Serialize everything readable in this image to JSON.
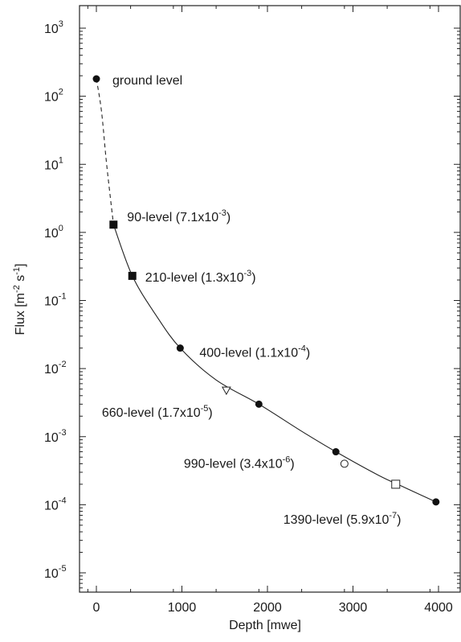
{
  "chart_data": {
    "type": "scatter",
    "xlabel": "Depth [mwe]",
    "ylabel_base": "Flux [m",
    "ylabel_exp1": "-2",
    "ylabel_mid": " s",
    "ylabel_exp2": "-1",
    "ylabel_end": "]",
    "xlim": [
      -200,
      4000
    ],
    "ylim_log10": [
      -5.3,
      3.3
    ],
    "y_scale": "log",
    "grid": false,
    "x_ticks": [
      {
        "value": 0,
        "label": "0"
      },
      {
        "value": 1000,
        "label": "1000"
      },
      {
        "value": 2000,
        "label": "2000"
      },
      {
        "value": 3000,
        "label": "3000"
      },
      {
        "value": 4000,
        "label": "4000"
      }
    ],
    "y_ticks": [
      {
        "exp": 3,
        "base": "10",
        "sup": "3"
      },
      {
        "exp": 2,
        "base": "10",
        "sup": "2"
      },
      {
        "exp": 1,
        "base": "10",
        "sup": "1"
      },
      {
        "exp": 0,
        "base": "10",
        "sup": "0"
      },
      {
        "exp": -1,
        "base": "10",
        "sup": "-1"
      },
      {
        "exp": -2,
        "base": "10",
        "sup": "-2"
      },
      {
        "exp": -3,
        "base": "10",
        "sup": "-3"
      },
      {
        "exp": -4,
        "base": "10",
        "sup": "-4"
      },
      {
        "exp": -5,
        "base": "10",
        "sup": "-5"
      }
    ],
    "points": [
      {
        "x": 0,
        "y": 180,
        "marker": "filled-circle",
        "label": "ground level"
      },
      {
        "x": 200,
        "y": 1.3,
        "marker": "filled-square",
        "label": "90-level (7.1x10",
        "label_sup": "-3",
        "label_end": ")"
      },
      {
        "x": 420,
        "y": 0.23,
        "marker": "filled-square",
        "label": "210-level (1.3x10",
        "label_sup": "-3",
        "label_end": ")"
      },
      {
        "x": 980,
        "y": 0.02,
        "marker": "filled-circle",
        "label": "400-level (1.1x10",
        "label_sup": "-4",
        "label_end": ")"
      },
      {
        "x": 1520,
        "y": 0.0048,
        "marker": "open-triangle",
        "label": "660-level (1.7x10",
        "label_sup": "-5",
        "label_end": ")"
      },
      {
        "x": 1900,
        "y": 0.003,
        "marker": "filled-circle",
        "label": ""
      },
      {
        "x": 2800,
        "y": 0.0006,
        "marker": "filled-circle",
        "label": ""
      },
      {
        "x": 2900,
        "y": 0.0004,
        "marker": "open-circle",
        "label": "990-level (3.4x10",
        "label_sup": "-6",
        "label_end": ")"
      },
      {
        "x": 3500,
        "y": 0.0002,
        "marker": "open-square",
        "label": "1390-level (5.9x10",
        "label_sup": "-7",
        "label_end": ")"
      },
      {
        "x": 3970,
        "y": 0.00011,
        "marker": "filled-circle",
        "label": ""
      }
    ],
    "curve_dashed": [
      [
        0,
        180
      ],
      [
        60,
        60
      ],
      [
        120,
        10
      ],
      [
        200,
        1.3
      ]
    ],
    "curve_solid": [
      [
        200,
        1.3
      ],
      [
        420,
        0.23
      ],
      [
        700,
        0.06
      ],
      [
        980,
        0.02
      ],
      [
        1400,
        0.0068
      ],
      [
        1900,
        0.003
      ],
      [
        2400,
        0.0012
      ],
      [
        2800,
        0.0006
      ],
      [
        3300,
        0.00027
      ],
      [
        3600,
        0.00018
      ],
      [
        3970,
        0.00011
      ]
    ]
  }
}
